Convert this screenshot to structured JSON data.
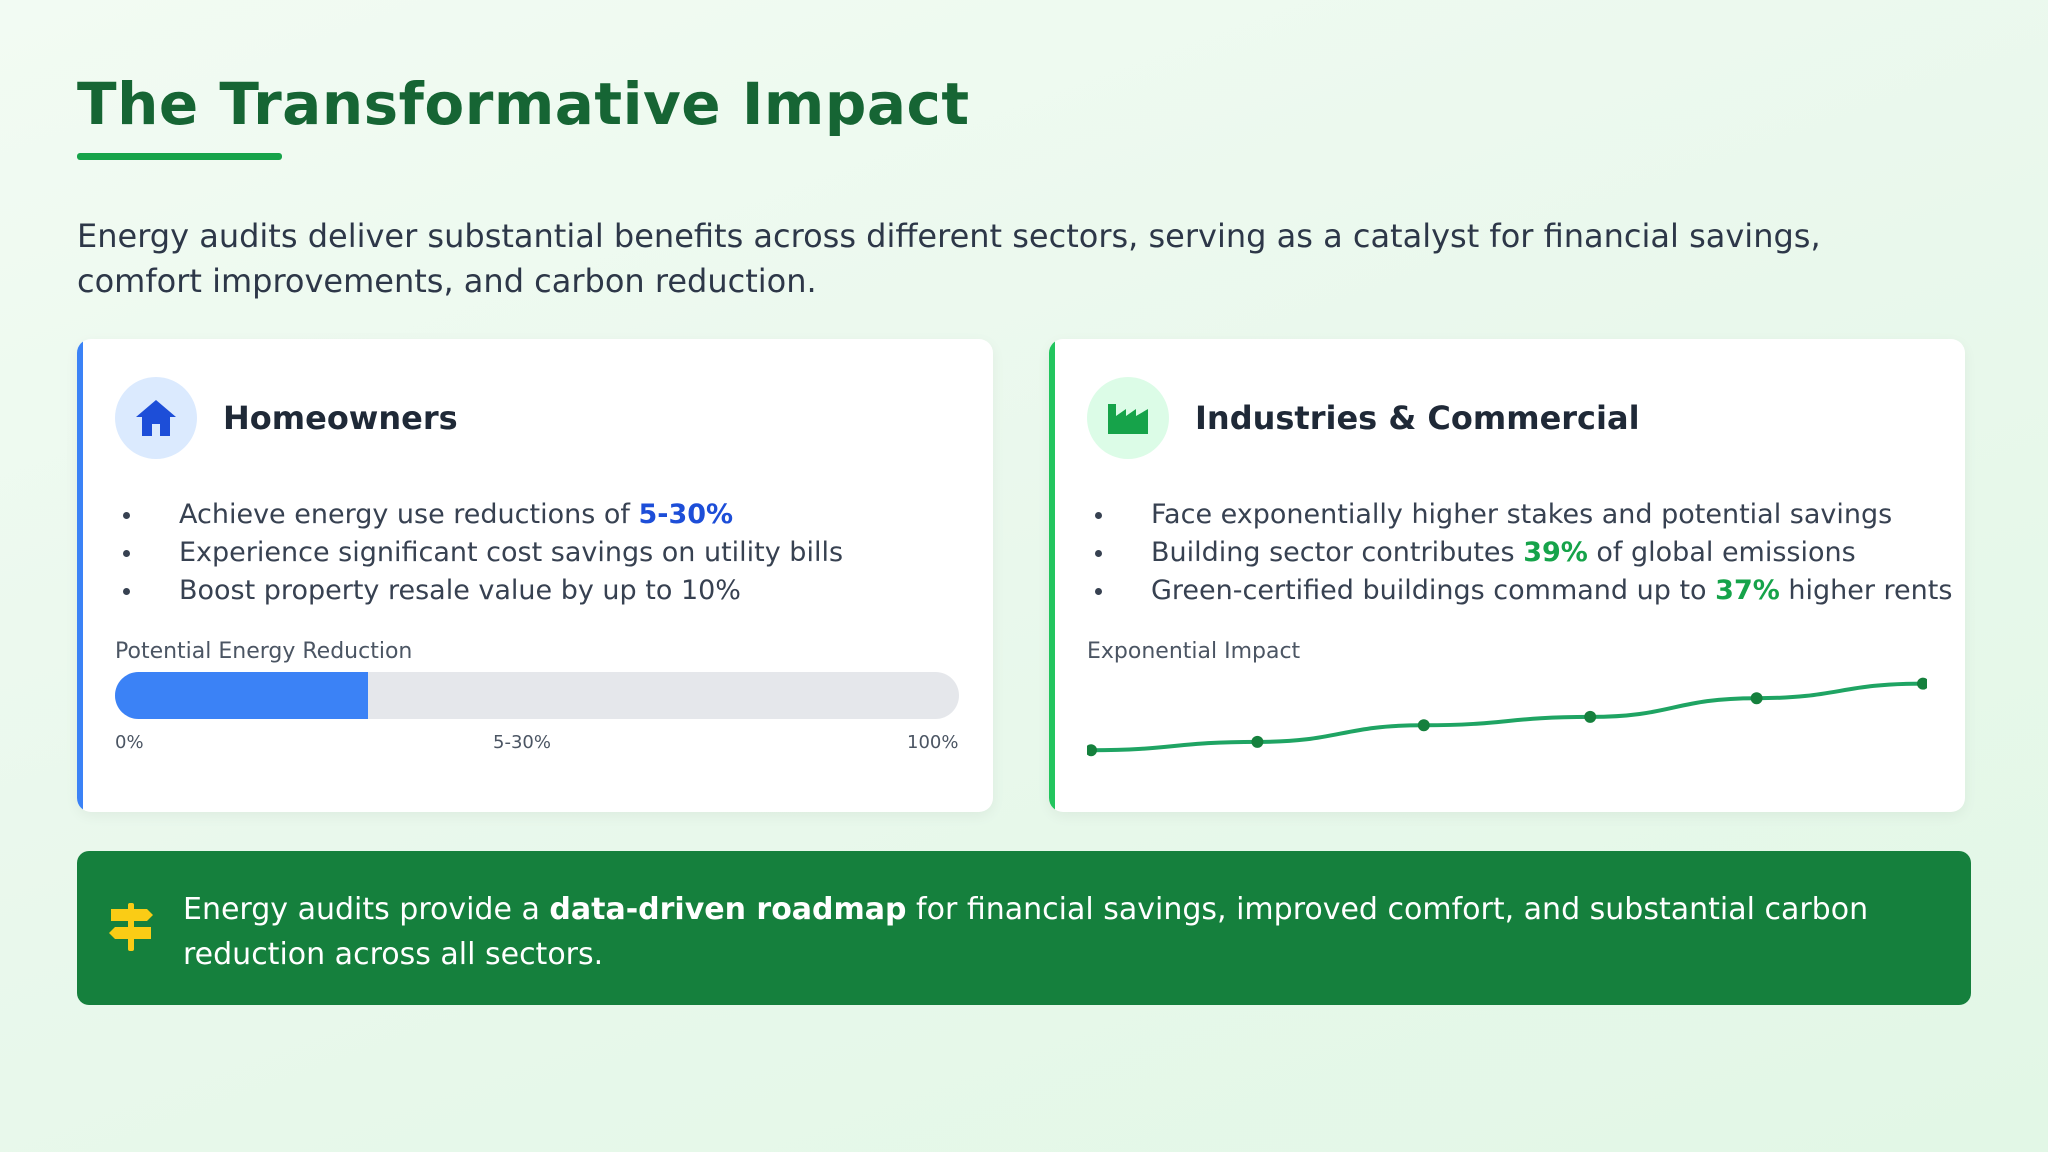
{
  "header": {
    "title": "The Transformative Impact",
    "intro": "Energy audits deliver substantial benefits across different sectors, serving as a catalyst for financial savings, comfort improvements, and carbon reduction."
  },
  "colors": {
    "primary_green": "#166534",
    "accent_green": "#16a34a",
    "accent_blue": "#3b82f6",
    "banner_bg": "#15803d",
    "signpost": "#facc15"
  },
  "homeowners": {
    "icon": "house-icon",
    "title": "Homeowners",
    "bullets": [
      {
        "pre": "Achieve energy use reductions of ",
        "highlight": "5-30%",
        "post": ""
      },
      {
        "pre": "Experience significant cost savings on utility bills",
        "highlight": "",
        "post": ""
      },
      {
        "pre": "Boost property resale value by up to 10%",
        "highlight": "",
        "post": ""
      }
    ],
    "progress": {
      "label": "Potential Energy Reduction",
      "value_percent": 30,
      "ticks": [
        "0%",
        "5-30%",
        "100%"
      ]
    }
  },
  "industries": {
    "icon": "factory-icon",
    "title": "Industries & Commercial",
    "bullets": [
      {
        "pre": "Face exponentially higher stakes and potential savings",
        "highlight": "",
        "post": ""
      },
      {
        "pre": "Building sector contributes ",
        "highlight": "39%",
        "post": " of global emissions"
      },
      {
        "pre": "Green-certified buildings command up to ",
        "highlight": "37%",
        "post": " higher rents"
      }
    ],
    "chart_data": {
      "type": "line",
      "title": "Exponential Impact",
      "x": [
        0,
        1,
        2,
        3,
        4,
        5
      ],
      "y": [
        10,
        14,
        22,
        26,
        35,
        42
      ],
      "ylim": [
        0,
        50
      ],
      "grid": false,
      "color": "#1fa463"
    }
  },
  "banner": {
    "icon": "signpost-icon",
    "pre": "Energy audits provide a ",
    "bold": "data-driven roadmap",
    "post": " for financial savings, improved comfort, and substantial carbon reduction across all sectors."
  }
}
